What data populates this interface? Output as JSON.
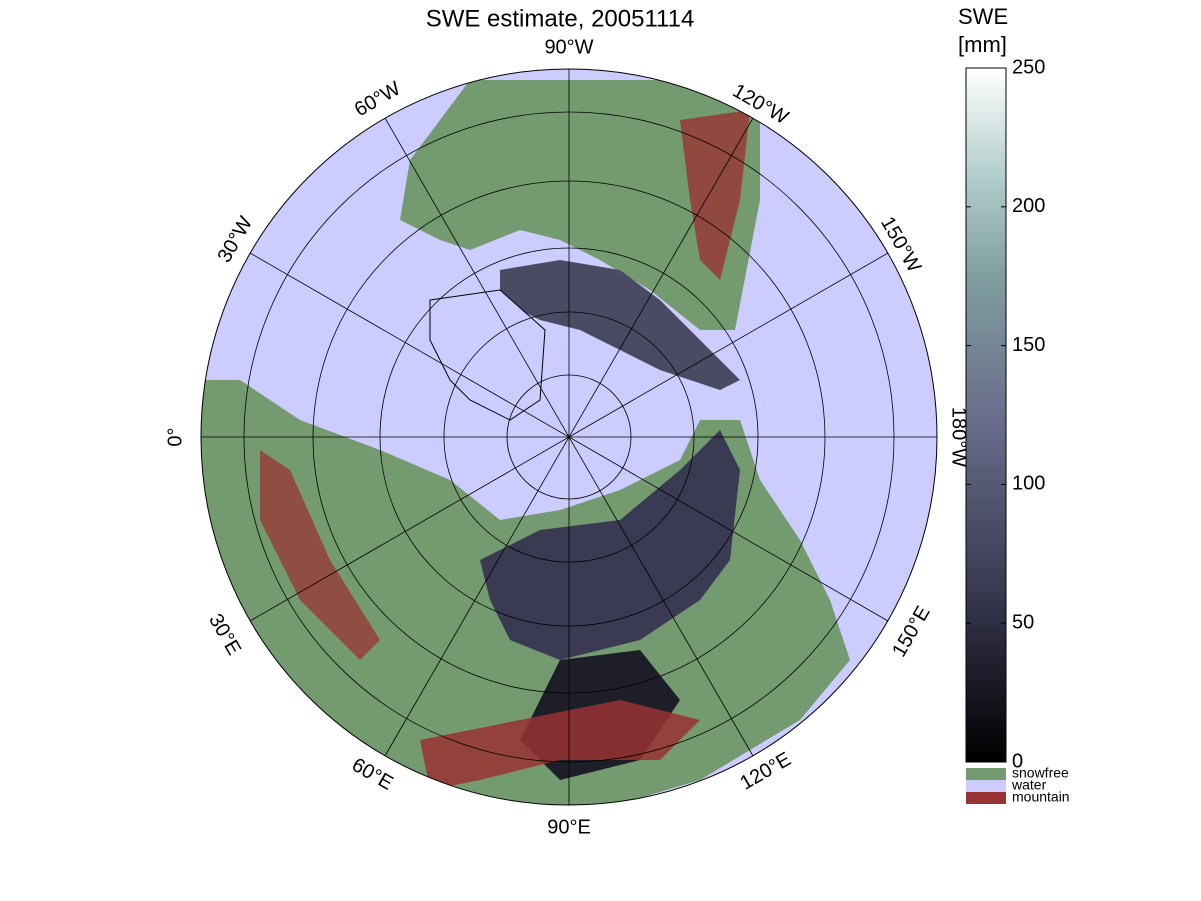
{
  "title": "SWE estimate, 20051114",
  "longitude_labels": [
    "90°W",
    "120°W",
    "150°W",
    "180°W",
    "150°E",
    "120°E",
    "90°E",
    "60°E",
    "30°E",
    "0°",
    "30°W",
    "60°W"
  ],
  "colorbar": {
    "title": [
      "SWE",
      "[mm]"
    ],
    "range": [
      0,
      250
    ],
    "ticks": [
      0,
      50,
      100,
      150,
      200,
      250
    ]
  },
  "legend": [
    {
      "label": "snowfree",
      "color": "#749b6f"
    },
    {
      "label": "water",
      "color": "#ccccff"
    },
    {
      "label": "mountain",
      "color": "#993333"
    }
  ]
}
